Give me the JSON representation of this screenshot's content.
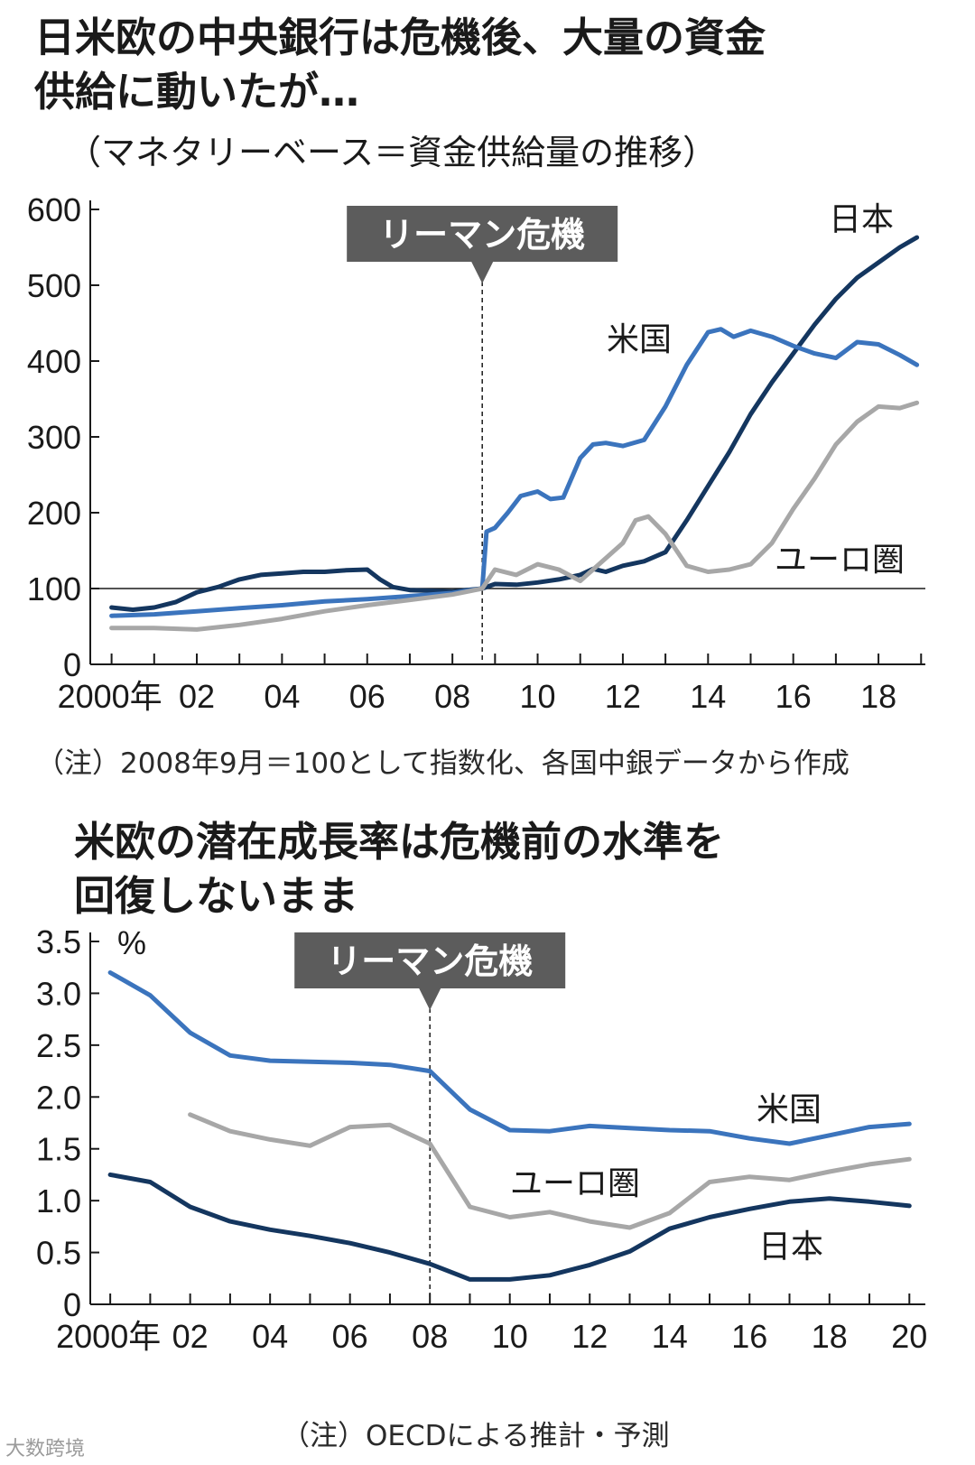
{
  "top": {
    "title_line1": "日米欧の中央銀行は危機後、大量の資金",
    "title_line2": "供給に動いたが…",
    "subtitle": "（マネタリーベース＝資金供給量の推移）",
    "note": "（注）2008年9月＝100として指数化、各国中銀データから作成"
  },
  "bottom": {
    "title_line1": "米欧の潜在成長率は危機前の水準を",
    "title_line2": "回復しないまま",
    "note": "（注）OECDによる推計・予測"
  },
  "watermark": "大数跨境",
  "colors": {
    "us": "#3b74bd",
    "japan": "#14365f",
    "euro": "#a7a7a7",
    "annotation_bg": "#5c5c5c"
  },
  "chart_data": [
    {
      "type": "line",
      "title": "日米欧の中央銀行は危機後、大量の資金供給に動いたが…",
      "subtitle": "（マネタリーベース＝資金供給量の推移）",
      "x_tick_labels": [
        "2000年",
        "02",
        "04",
        "06",
        "08",
        "10",
        "12",
        "14",
        "16",
        "18"
      ],
      "x_ticks": [
        2000,
        2002,
        2004,
        2006,
        2008,
        2010,
        2012,
        2014,
        2016,
        2018
      ],
      "xlim": [
        1999.5,
        2019.1
      ],
      "ylim": [
        0,
        600
      ],
      "y_ticks": [
        0,
        100,
        200,
        300,
        400,
        500,
        600
      ],
      "reference_line": 100,
      "annotation": {
        "label": "リーマン危機",
        "x": 2008.7
      },
      "series": [
        {
          "name": "日本",
          "color_key": "japan",
          "x": [
            2000,
            2000.5,
            2001,
            2001.5,
            2002,
            2002.5,
            2003,
            2003.5,
            2004,
            2004.5,
            2005,
            2005.5,
            2006,
            2006.3,
            2006.6,
            2007,
            2007.5,
            2008,
            2008.7,
            2009,
            2009.5,
            2010,
            2010.5,
            2011,
            2011.3,
            2011.6,
            2012,
            2012.5,
            2013,
            2013.5,
            2014,
            2014.5,
            2015,
            2015.5,
            2016,
            2016.5,
            2017,
            2017.5,
            2018,
            2018.5,
            2018.9
          ],
          "values": [
            75,
            72,
            75,
            82,
            95,
            102,
            112,
            118,
            120,
            122,
            122,
            124,
            125,
            112,
            102,
            98,
            97,
            96,
            100,
            106,
            105,
            108,
            112,
            118,
            126,
            122,
            130,
            136,
            148,
            190,
            235,
            280,
            330,
            372,
            410,
            448,
            482,
            510,
            530,
            550,
            563
          ]
        },
        {
          "name": "米国",
          "color_key": "us",
          "x": [
            2000,
            2001,
            2002,
            2003,
            2004,
            2005,
            2006,
            2007,
            2008,
            2008.7,
            2008.8,
            2009,
            2009.3,
            2009.6,
            2010,
            2010.3,
            2010.6,
            2011,
            2011.3,
            2011.6,
            2012,
            2012.5,
            2013,
            2013.5,
            2014,
            2014.3,
            2014.6,
            2015,
            2015.5,
            2016,
            2016.5,
            2017,
            2017.5,
            2018,
            2018.5,
            2018.9
          ],
          "values": [
            64,
            66,
            70,
            74,
            78,
            83,
            86,
            90,
            94,
            100,
            175,
            180,
            200,
            222,
            228,
            218,
            220,
            272,
            290,
            292,
            288,
            296,
            340,
            395,
            438,
            442,
            432,
            440,
            432,
            420,
            410,
            404,
            425,
            422,
            408,
            395
          ]
        },
        {
          "name": "ユーロ圏",
          "color_key": "euro",
          "x": [
            2000,
            2001,
            2002,
            2003,
            2004,
            2005,
            2006,
            2007,
            2008,
            2008.7,
            2009,
            2009.5,
            2010,
            2010.5,
            2011,
            2011.5,
            2012,
            2012.3,
            2012.6,
            2013,
            2013.5,
            2014,
            2014.5,
            2015,
            2015.5,
            2016,
            2016.5,
            2017,
            2017.5,
            2018,
            2018.5,
            2018.9
          ],
          "values": [
            48,
            48,
            46,
            52,
            60,
            70,
            78,
            85,
            92,
            100,
            125,
            118,
            132,
            125,
            110,
            135,
            160,
            190,
            195,
            172,
            130,
            122,
            125,
            132,
            160,
            205,
            245,
            290,
            320,
            340,
            338,
            345
          ]
        }
      ]
    },
    {
      "type": "line",
      "title": "米欧の潜在成長率は危機前の水準を回復しないまま",
      "ylabel": "%",
      "x_tick_labels": [
        "2000年",
        "02",
        "04",
        "06",
        "08",
        "10",
        "12",
        "14",
        "16",
        "18",
        "20"
      ],
      "x_ticks": [
        2000,
        2002,
        2004,
        2006,
        2008,
        2010,
        2012,
        2014,
        2016,
        2018,
        2020
      ],
      "xlim": [
        1999.5,
        2020.4
      ],
      "ylim": [
        0,
        3.5
      ],
      "y_ticks": [
        0,
        0.5,
        1.0,
        1.5,
        2.0,
        2.5,
        3.0,
        3.5
      ],
      "annotation": {
        "label": "リーマン危機",
        "x": 2008
      },
      "series": [
        {
          "name": "米国",
          "color_key": "us",
          "x": [
            2000,
            2001,
            2002,
            2003,
            2004,
            2005,
            2006,
            2007,
            2008,
            2009,
            2010,
            2011,
            2012,
            2013,
            2014,
            2015,
            2016,
            2017,
            2018,
            2019,
            2020
          ],
          "values": [
            3.2,
            2.98,
            2.62,
            2.4,
            2.35,
            2.34,
            2.33,
            2.31,
            2.25,
            1.88,
            1.68,
            1.67,
            1.72,
            1.7,
            1.68,
            1.67,
            1.6,
            1.55,
            1.63,
            1.71,
            1.74
          ]
        },
        {
          "name": "ユーロ圏",
          "color_key": "euro",
          "x": [
            2002,
            2003,
            2004,
            2005,
            2006,
            2007,
            2008,
            2009,
            2010,
            2011,
            2012,
            2013,
            2014,
            2015,
            2016,
            2017,
            2018,
            2019,
            2020
          ],
          "values": [
            1.83,
            1.67,
            1.59,
            1.53,
            1.71,
            1.73,
            1.55,
            0.94,
            0.84,
            0.89,
            0.8,
            0.74,
            0.88,
            1.18,
            1.23,
            1.2,
            1.28,
            1.35,
            1.4
          ]
        },
        {
          "name": "日本",
          "color_key": "japan",
          "x": [
            2000,
            2001,
            2002,
            2003,
            2004,
            2005,
            2006,
            2007,
            2008,
            2009,
            2010,
            2011,
            2012,
            2013,
            2014,
            2015,
            2016,
            2017,
            2018,
            2019,
            2020
          ],
          "values": [
            1.25,
            1.18,
            0.94,
            0.8,
            0.72,
            0.66,
            0.59,
            0.5,
            0.39,
            0.24,
            0.24,
            0.28,
            0.38,
            0.51,
            0.73,
            0.84,
            0.92,
            0.99,
            1.02,
            0.99,
            0.95
          ]
        }
      ]
    }
  ]
}
